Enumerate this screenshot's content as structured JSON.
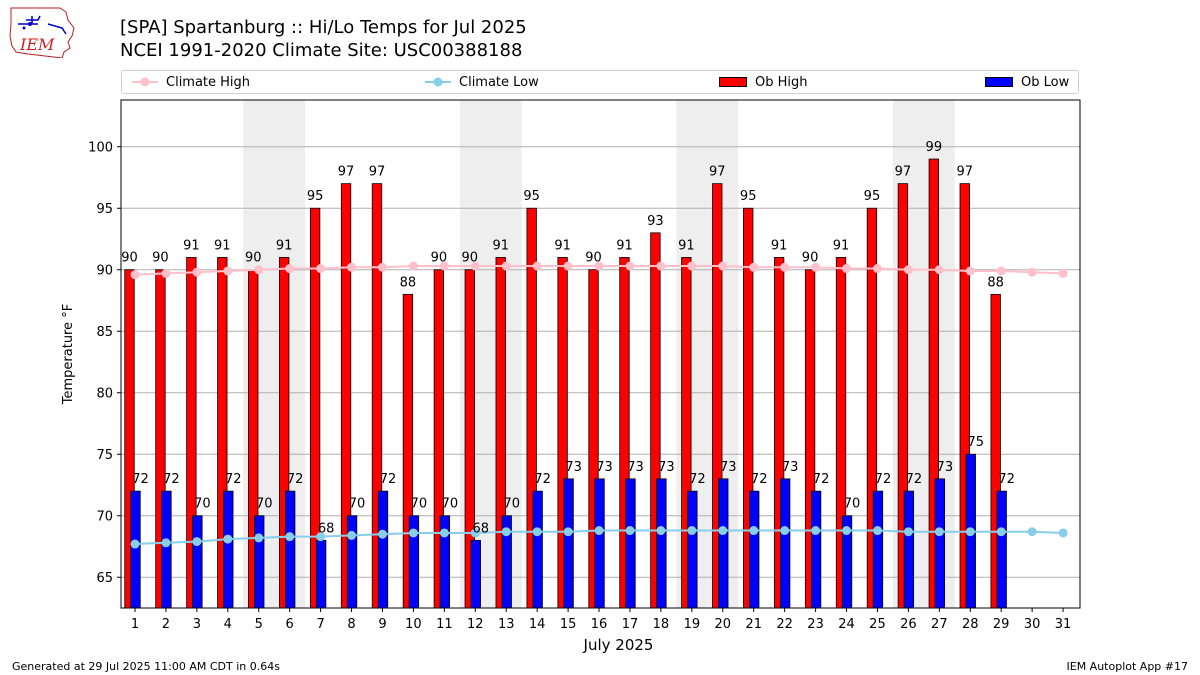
{
  "header": {
    "logo_text": "IEM",
    "title_line1": "[SPA] Spartanburg :: Hi/Lo Temps for Jul 2025",
    "title_line2": "NCEI 1991-2020 Climate Site: USC00388188"
  },
  "legend": {
    "climate_high": "Climate High",
    "climate_low": "Climate Low",
    "ob_high": "Ob High",
    "ob_low": "Ob Low"
  },
  "footer": {
    "generated": "Generated at 29 Jul 2025 11:00 AM CDT in 0.64s",
    "app": "IEM Autoplot App #17"
  },
  "colors": {
    "ob_high": "#ff0000",
    "ob_low": "#0000ff",
    "climate_high": "#ffc0cb",
    "climate_low": "#87ceeb",
    "weekend_shade": "#eeeeee",
    "grid": "#b0b0b0"
  },
  "chart_data": {
    "type": "bar",
    "title": "[SPA] Spartanburg :: Hi/Lo Temps for Jul 2025",
    "xlabel": "July 2025",
    "ylabel": "Temperature °F",
    "ylim": [
      62.5,
      103.8
    ],
    "yticks": [
      65,
      70,
      75,
      80,
      85,
      90,
      95,
      100
    ],
    "grid": true,
    "legend_position": "top",
    "days": [
      1,
      2,
      3,
      4,
      5,
      6,
      7,
      8,
      9,
      10,
      11,
      12,
      13,
      14,
      15,
      16,
      17,
      18,
      19,
      20,
      21,
      22,
      23,
      24,
      25,
      26,
      27,
      28,
      29,
      30,
      31
    ],
    "weekend_days": [
      5,
      6,
      12,
      13,
      19,
      20,
      26,
      27
    ],
    "series": [
      {
        "name": "Ob High",
        "type": "bar",
        "values": [
          90,
          90,
          91,
          91,
          90,
          91,
          95,
          97,
          97,
          88,
          90,
          90,
          91,
          95,
          91,
          90,
          91,
          93,
          91,
          97,
          95,
          91,
          90,
          91,
          95,
          97,
          99,
          97,
          88
        ]
      },
      {
        "name": "Ob Low",
        "type": "bar",
        "values": [
          72,
          72,
          70,
          72,
          70,
          72,
          68,
          70,
          72,
          70,
          70,
          68,
          70,
          72,
          73,
          73,
          73,
          73,
          72,
          73,
          72,
          73,
          72,
          70,
          72,
          72,
          73,
          75,
          72
        ]
      },
      {
        "name": "Climate High",
        "type": "line",
        "values": [
          89.6,
          89.7,
          89.8,
          89.9,
          90.0,
          90.1,
          90.1,
          90.2,
          90.2,
          90.3,
          90.3,
          90.3,
          90.3,
          90.3,
          90.3,
          90.3,
          90.3,
          90.3,
          90.3,
          90.3,
          90.2,
          90.2,
          90.2,
          90.1,
          90.1,
          90.0,
          90.0,
          89.9,
          89.9,
          89.8,
          89.7
        ]
      },
      {
        "name": "Climate Low",
        "type": "line",
        "values": [
          67.7,
          67.8,
          67.9,
          68.1,
          68.2,
          68.3,
          68.3,
          68.4,
          68.5,
          68.6,
          68.6,
          68.6,
          68.7,
          68.7,
          68.7,
          68.8,
          68.8,
          68.8,
          68.8,
          68.8,
          68.8,
          68.8,
          68.8,
          68.8,
          68.8,
          68.7,
          68.7,
          68.7,
          68.7,
          68.7,
          68.6
        ]
      }
    ]
  }
}
